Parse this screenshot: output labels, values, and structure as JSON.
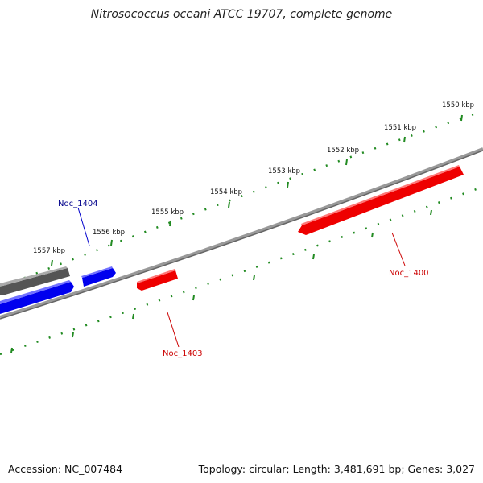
{
  "title": "Nitrosococcus oceani ATCC 19707, complete genome",
  "accession_text": "Accession: NC_007484",
  "summary_text": "Topology: circular; Length: 3,481,691 bp; Genes: 3,027",
  "ruler": {
    "tick_labels": [
      "1550 kbp",
      "1551 kbp",
      "1552 kbp",
      "1553 kbp",
      "1554 kbp",
      "1555 kbp",
      "1556 kbp",
      "1557 kbp"
    ],
    "tick_color": "#228B22"
  },
  "backbone_color": "#808080",
  "features": [
    {
      "label": "Noc_1404",
      "color": "#0000ee",
      "label_color": "#00008b"
    },
    {
      "label": "Noc_1403",
      "color": "#ee0000",
      "label_color": "#cc0000"
    },
    {
      "label": "Noc_1400",
      "color": "#ee0000",
      "label_color": "#cc0000"
    },
    {
      "label": "",
      "color": "#0000ee",
      "label_color": ""
    },
    {
      "label": "",
      "color": "#555555",
      "label_color": ""
    }
  ]
}
